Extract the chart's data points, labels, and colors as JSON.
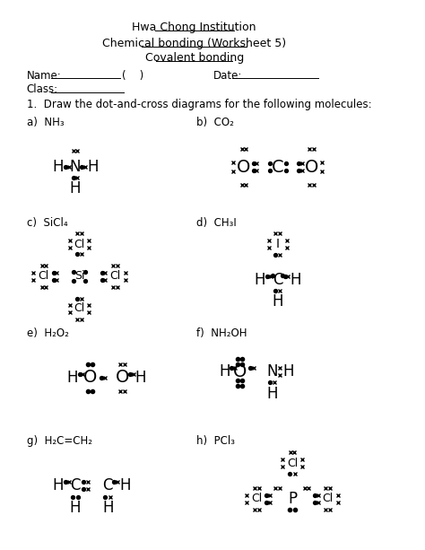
{
  "title1": "Hwa Chong Institution",
  "title2": "Chemical bonding (Worksheet 5)",
  "title3": "Covalent bonding",
  "instruction": "1.  Draw the dot-and-cross diagrams for the following molecules:",
  "bg_color": "#ffffff",
  "text_color": "#000000",
  "font_size_title": 9,
  "font_size_body": 8.5,
  "font_size_atom": 12,
  "font_size_small": 7
}
